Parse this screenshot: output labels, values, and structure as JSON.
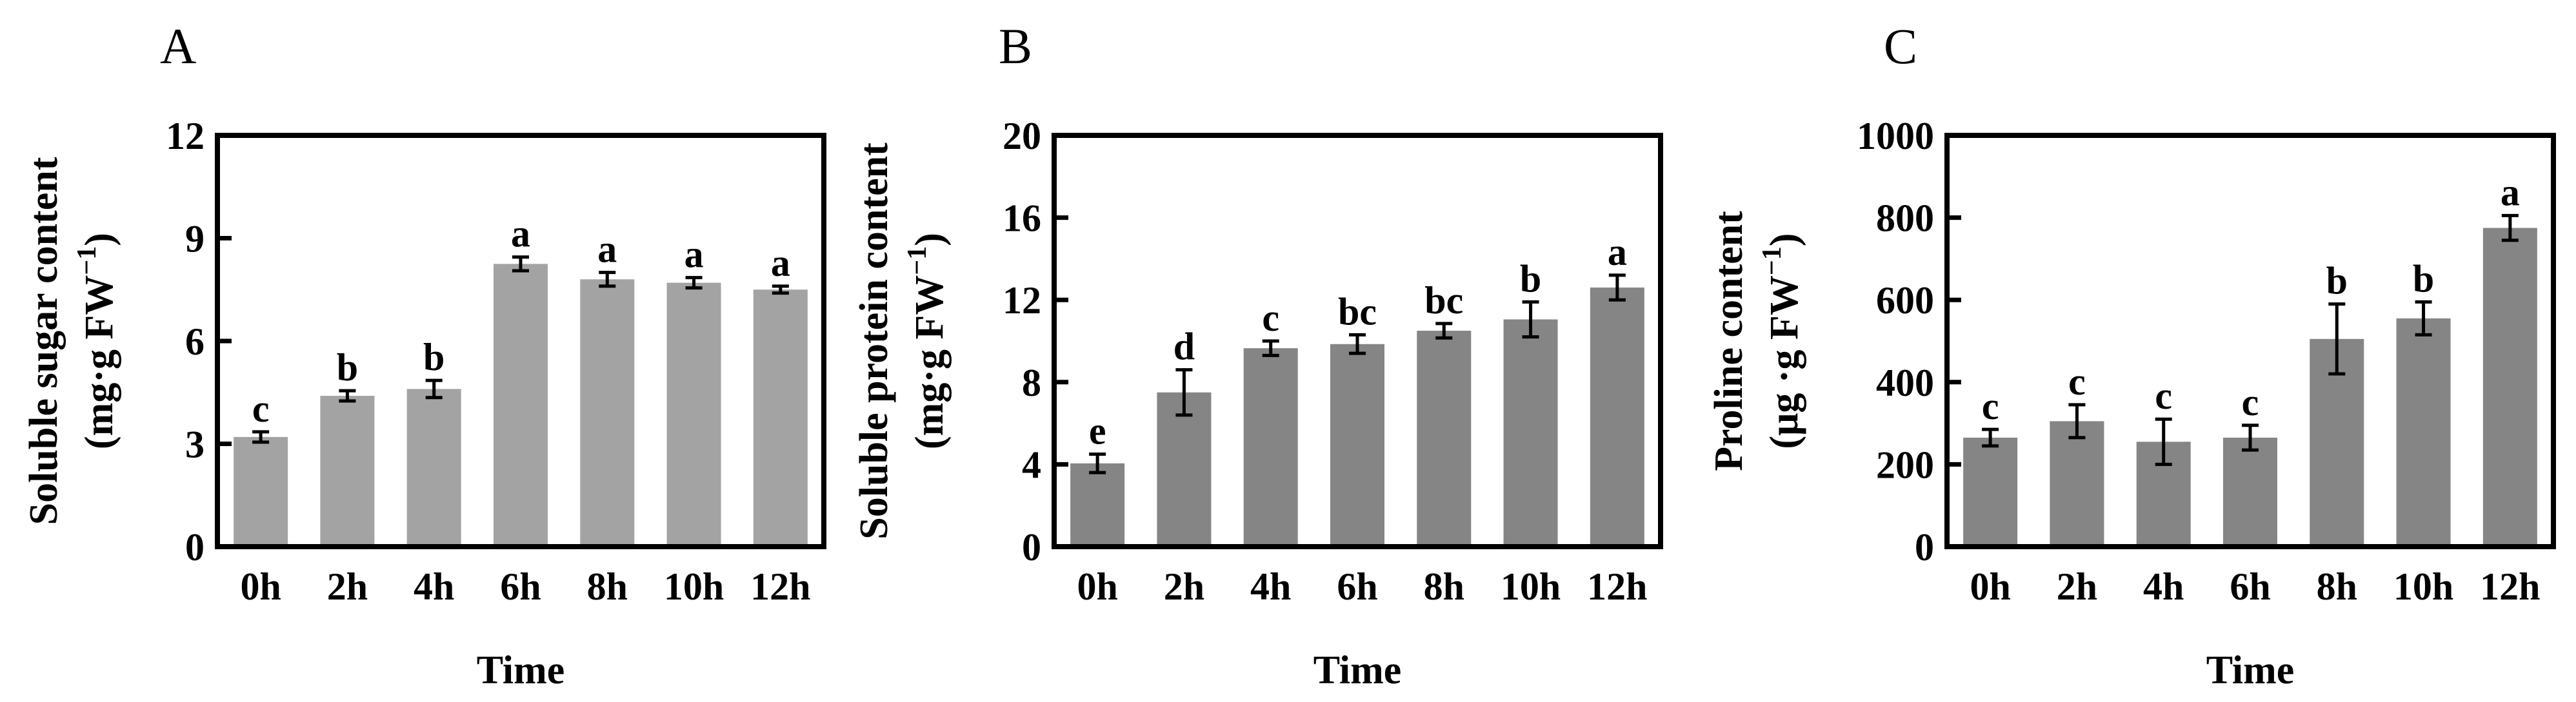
{
  "figure": {
    "background": "#ffffff",
    "axis_color": "#000000"
  },
  "chart_data": [
    {
      "type": "bar",
      "panel_label": "A",
      "title": "",
      "xlabel": "Time",
      "ylabel_line1": "Soluble sugar content",
      "ylabel_line2": "(mg·g FW",
      "ylabel_sup": "−1",
      "ylabel_close": ")",
      "ylim": [
        0,
        12
      ],
      "yticks": [
        0,
        3,
        6,
        9,
        12
      ],
      "bar_color": "#a3a3a3",
      "categories": [
        "0h",
        "2h",
        "4h",
        "6h",
        "8h",
        "10h",
        "12h"
      ],
      "values": [
        3.2,
        4.4,
        4.6,
        8.25,
        7.8,
        7.7,
        7.5
      ],
      "errors": [
        0.15,
        0.15,
        0.25,
        0.2,
        0.2,
        0.15,
        0.1
      ],
      "significance": [
        "c",
        "b",
        "b",
        "a",
        "a",
        "a",
        "a"
      ]
    },
    {
      "type": "bar",
      "panel_label": "B",
      "title": "",
      "xlabel": "Time",
      "ylabel_line1": "Soluble protein content",
      "ylabel_line2": "(mg·g FW",
      "ylabel_sup": "−1",
      "ylabel_close": ")",
      "ylim": [
        0,
        20
      ],
      "yticks": [
        0,
        4,
        8,
        12,
        16,
        20
      ],
      "bar_color": "#858585",
      "categories": [
        "0h",
        "2h",
        "4h",
        "6h",
        "8h",
        "10h",
        "12h"
      ],
      "values": [
        4.05,
        7.5,
        9.65,
        9.85,
        10.5,
        11.05,
        12.6
      ],
      "errors": [
        0.45,
        1.1,
        0.35,
        0.45,
        0.35,
        0.85,
        0.6
      ],
      "significance": [
        "e",
        "d",
        "c",
        "bc",
        "bc",
        "b",
        "a"
      ]
    },
    {
      "type": "bar",
      "panel_label": "C",
      "title": "",
      "xlabel": "Time",
      "ylabel_line1": "Proline content",
      "ylabel_line2": "(μg ·g FW",
      "ylabel_sup": "−1",
      "ylabel_close": ")",
      "ylim": [
        0,
        1000
      ],
      "yticks": [
        0,
        200,
        400,
        600,
        800,
        1000
      ],
      "bar_color": "#858585",
      "categories": [
        "0h",
        "2h",
        "4h",
        "6h",
        "8h",
        "10h",
        "12h"
      ],
      "values": [
        265,
        305,
        255,
        265,
        505,
        555,
        775
      ],
      "errors": [
        20,
        40,
        55,
        30,
        85,
        40,
        30
      ],
      "significance": [
        "c",
        "c",
        "c",
        "c",
        "b",
        "b",
        "a"
      ]
    }
  ]
}
